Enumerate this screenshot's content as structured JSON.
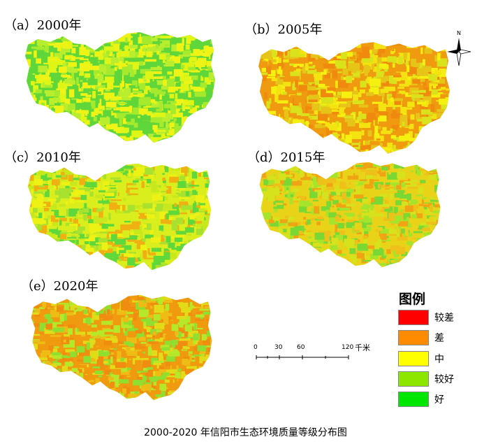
{
  "panels": [
    {
      "id": "a",
      "label": "（a）2000年",
      "palette": [
        "#5fd63a",
        "#b8ee2e",
        "#eef316",
        "#f0f316",
        "#a5ea2c",
        "#dff515"
      ]
    },
    {
      "id": "b",
      "label": "（b）2005年",
      "palette": [
        "#f09a10",
        "#f3e310",
        "#e6c418",
        "#f5f010",
        "#f08a0e",
        "#d9e21a"
      ]
    },
    {
      "id": "c",
      "label": "（c）2010年",
      "palette": [
        "#d9ee1c",
        "#5ed83a",
        "#eef214",
        "#a8e22e",
        "#f1b012",
        "#c8e81e"
      ]
    },
    {
      "id": "d",
      "label": "（d）2015年",
      "palette": [
        "#e9d318",
        "#a6e42c",
        "#f0a414",
        "#d5e21c",
        "#7ad834",
        "#eec11a"
      ]
    },
    {
      "id": "e",
      "label": "（e）2020年",
      "palette": [
        "#f09a10",
        "#eebc14",
        "#b6e82a",
        "#f08c10",
        "#e2dc18",
        "#8fde30"
      ]
    }
  ],
  "north_label": "N",
  "legend": {
    "title": "图例",
    "items": [
      {
        "label": "较差",
        "color": "#ff0000"
      },
      {
        "label": "差",
        "color": "#ff8c00"
      },
      {
        "label": "中",
        "color": "#ffff00"
      },
      {
        "label": "较好",
        "color": "#8ce600"
      },
      {
        "label": "好",
        "color": "#00e600"
      }
    ]
  },
  "scale_bar": {
    "ticks": [
      "0",
      "30",
      "60",
      "120"
    ],
    "unit": "千米"
  },
  "caption": "2000-2020 年信阳市生态环境质量等级分布图"
}
